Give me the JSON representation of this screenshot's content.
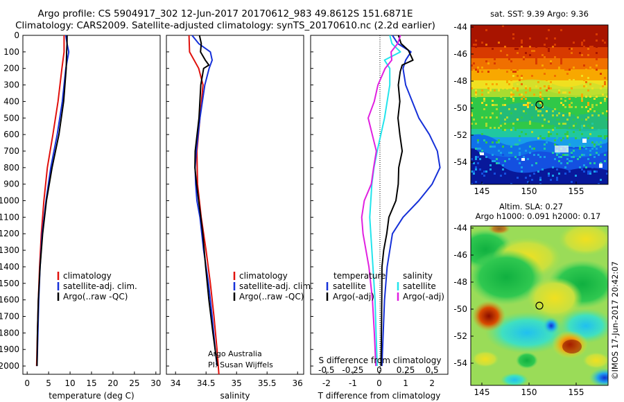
{
  "header": {
    "line1": "Argo profile: CS 5904917_302 12-Jun-2017 20170612_983 49.8612S 151.6871E",
    "line2": "Climatology: CARS2009. Satellite-adjusted climatology: synTS_20170610.nc (2.2d earlier)"
  },
  "colors": {
    "climatology": "#e0100c",
    "satellite": "#1530d8",
    "argo": "#000000",
    "sat_t": "#22e4ec",
    "argo_s": "#e020e0"
  },
  "depth_ticks": [
    "0",
    "100",
    "200",
    "300",
    "400",
    "500",
    "600",
    "700",
    "800",
    "900",
    "1000",
    "1100",
    "1200",
    "1300",
    "1400",
    "1500",
    "1600",
    "1700",
    "1800",
    "1900",
    "2000"
  ],
  "panels": {
    "temperature": {
      "xlabel": "temperature (deg C)",
      "ticks": [
        "0",
        "5",
        "10",
        "15",
        "20",
        "25",
        "30"
      ],
      "legend": [
        "climatology",
        "satellite-adj. clim.",
        "Argo(..raw -QC)"
      ]
    },
    "salinity": {
      "xlabel": "salinity",
      "ticks": [
        "34",
        "34.5",
        "35",
        "35.5",
        "36"
      ],
      "legend": [
        "climatology",
        "satellite-adj. clim.",
        "Argo(..raw -QC)"
      ],
      "credit1": "Argo Australia",
      "credit2": "PI: Susan Wijffels"
    },
    "difference": {
      "xlabel": "T difference from climatology",
      "top_label": "S difference from climatology",
      "ticks_t": [
        "-2",
        "-1",
        "0",
        "1",
        "2"
      ],
      "ticks_s": [
        "-0.5",
        "-0.25",
        "0",
        "0.25",
        "0.5"
      ],
      "legend_t_title": "temperature",
      "legend_t": [
        "satellite",
        "Argo(-adj)"
      ],
      "legend_s_title": "salinity",
      "legend_s": [
        "satellite",
        "Argo(-adj)"
      ]
    }
  },
  "maps": {
    "sst": {
      "title": "sat. SST: 9.39 Argo: 9.36",
      "yticks": [
        "-44",
        "-46",
        "-48",
        "-50",
        "-52",
        "-54"
      ],
      "xticks": [
        "145",
        "150",
        "155"
      ]
    },
    "sla": {
      "title1": "Altim. SLA: 0.27",
      "title2": "Argo h1000: 0.091 h2000: 0.17",
      "yticks": [
        "-44",
        "-46",
        "-48",
        "-50",
        "-52",
        "-54"
      ],
      "xticks": [
        "145",
        "150",
        "155"
      ]
    },
    "watermark": "©IMOS 17-Jun-2017 20:42:07"
  },
  "chart_data": [
    {
      "type": "line",
      "panel": "temperature",
      "xlabel": "temperature (deg C)",
      "ylabel": "",
      "xlim": [
        -1,
        31
      ],
      "ylim": [
        2050,
        0
      ],
      "series": [
        {
          "name": "climatology",
          "depth": [
            0,
            100,
            200,
            400,
            600,
            800,
            1000,
            1200,
            1400,
            1600,
            1800,
            2000
          ],
          "values": [
            8.6,
            8.6,
            8.1,
            7.2,
            6.0,
            4.7,
            3.9,
            3.3,
            2.9,
            2.6,
            2.4,
            2.2
          ]
        },
        {
          "name": "satellite-adj. clim.",
          "depth": [
            0,
            50,
            100,
            200,
            400,
            600,
            800,
            1000,
            1200,
            1400,
            1600,
            1800,
            2000
          ],
          "values": [
            9.0,
            9.3,
            9.7,
            9.0,
            8.2,
            7.0,
            5.5,
            4.4,
            3.5,
            3.0,
            2.7,
            2.5,
            2.3
          ]
        },
        {
          "name": "Argo(..raw -QC)",
          "depth": [
            0,
            50,
            100,
            200,
            400,
            600,
            800,
            1000,
            1200,
            1400,
            1600,
            1800,
            2000
          ],
          "values": [
            9.3,
            9.3,
            9.2,
            9.1,
            8.5,
            7.4,
            5.8,
            4.5,
            3.6,
            3.0,
            2.6,
            2.4,
            2.3
          ]
        }
      ]
    },
    {
      "type": "line",
      "panel": "salinity",
      "xlabel": "salinity",
      "ylabel": "",
      "xlim": [
        33.85,
        36.1
      ],
      "ylim": [
        2050,
        0
      ],
      "series": [
        {
          "name": "climatology",
          "depth": [
            0,
            100,
            200,
            300,
            500,
            700,
            900,
            1100,
            1300,
            1500,
            1700,
            1900,
            2050
          ],
          "values": [
            34.22,
            34.23,
            34.38,
            34.45,
            34.4,
            34.35,
            34.36,
            34.42,
            34.5,
            34.57,
            34.63,
            34.68,
            34.71
          ]
        },
        {
          "name": "satellite-adj. clim.",
          "depth": [
            0,
            50,
            100,
            150,
            200,
            300,
            500,
            700,
            800,
            900,
            1000,
            1100,
            1300,
            1500,
            1700,
            1900,
            2000
          ],
          "values": [
            34.27,
            34.38,
            34.57,
            34.6,
            34.55,
            34.48,
            34.4,
            34.34,
            34.32,
            34.33,
            34.35,
            34.4,
            34.46,
            34.54,
            34.6,
            34.65,
            34.68
          ]
        },
        {
          "name": "Argo(..raw -QC)",
          "depth": [
            0,
            50,
            100,
            150,
            180,
            200,
            300,
            500,
            700,
            800,
            900,
            1000,
            1100,
            1200,
            1400,
            1600,
            1800,
            2000
          ],
          "values": [
            34.38,
            34.42,
            34.42,
            34.5,
            34.55,
            34.45,
            34.4,
            34.38,
            34.33,
            34.33,
            34.35,
            34.37,
            34.4,
            34.44,
            34.5,
            34.56,
            34.62,
            34.68
          ]
        }
      ]
    },
    {
      "type": "line",
      "panel": "difference",
      "xlabel": "T difference from climatology",
      "x2label": "S difference from climatology",
      "xlim": [
        -2.6,
        2.6
      ],
      "x2lim": [
        -0.65,
        0.65
      ],
      "ylim": [
        2050,
        0
      ],
      "series": [
        {
          "name": "satellite",
          "axis": "T",
          "depth": [
            0,
            50,
            100,
            150,
            200,
            300,
            500,
            600,
            700,
            800,
            900,
            1000,
            1100,
            1200,
            1400,
            1600,
            1800,
            2000
          ],
          "values": [
            0.5,
            0.7,
            1.2,
            1.0,
            0.9,
            1.0,
            1.5,
            1.9,
            2.2,
            2.3,
            2.0,
            1.5,
            0.9,
            0.5,
            0.3,
            0.2,
            0.15,
            0.1
          ]
        },
        {
          "name": "Argo(-adj)",
          "axis": "T",
          "depth": [
            0,
            50,
            90,
            150,
            180,
            220,
            300,
            400,
            500,
            600,
            700,
            800,
            900,
            1000,
            1100,
            1200,
            1300,
            1400,
            1600,
            1800,
            2000
          ],
          "values": [
            0.7,
            0.8,
            1.1,
            1.3,
            0.9,
            0.8,
            0.7,
            0.75,
            0.7,
            0.8,
            0.9,
            0.75,
            0.7,
            0.6,
            0.35,
            0.3,
            0.2,
            0.12,
            0.08,
            0.05,
            0.05
          ]
        },
        {
          "name": "satellite",
          "axis": "S",
          "depth": [
            0,
            50,
            100,
            150,
            200,
            300,
            500,
            700,
            800,
            900,
            1000,
            1100,
            1200,
            1400,
            1600,
            1800,
            2000
          ],
          "values": [
            0.1,
            0.12,
            0.2,
            0.05,
            0.1,
            0.1,
            0.05,
            -0.02,
            -0.05,
            -0.07,
            -0.08,
            -0.09,
            -0.08,
            -0.06,
            -0.04,
            -0.03,
            -0.02
          ]
        },
        {
          "name": "Argo(-adj)",
          "axis": "S",
          "depth": [
            0,
            50,
            100,
            150,
            200,
            300,
            400,
            500,
            700,
            800,
            900,
            1000,
            1100,
            1200,
            1400,
            1600,
            1800,
            2000
          ],
          "values": [
            0.2,
            0.18,
            0.12,
            0.12,
            0.05,
            -0.02,
            -0.05,
            -0.1,
            -0.02,
            -0.05,
            -0.08,
            -0.15,
            -0.17,
            -0.15,
            -0.09,
            -0.06,
            -0.05,
            -0.04
          ]
        }
      ]
    }
  ]
}
